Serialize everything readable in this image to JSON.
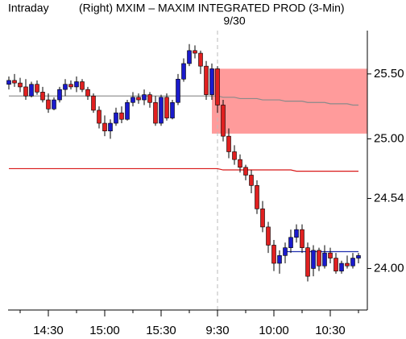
{
  "chart_data": {
    "type": "candlestick",
    "title": "Intraday",
    "subtitle": "(Right)  MXIM – MAXIM INTEGRATED PROD  (3-Min)",
    "annotation": "9/30",
    "up_color": "#1a1acc",
    "down_color": "#e02020",
    "categories": [
      null,
      null,
      null,
      null,
      null,
      null,
      null,
      "14:30",
      null,
      null,
      null,
      null,
      null,
      null,
      null,
      null,
      null,
      "15:00",
      null,
      null,
      null,
      null,
      null,
      null,
      null,
      null,
      null,
      "15:30",
      null,
      null,
      null,
      null,
      null,
      null,
      null,
      null,
      null,
      "9:30",
      null,
      null,
      null,
      null,
      null,
      null,
      null,
      null,
      null,
      "10:00",
      null,
      null,
      null,
      null,
      null,
      null,
      null,
      null,
      null,
      "10:30",
      null,
      null,
      null,
      null,
      null
    ],
    "open": [
      25.42,
      25.45,
      25.43,
      25.4,
      25.33,
      25.42,
      25.36,
      25.3,
      25.23,
      25.3,
      25.38,
      25.42,
      25.4,
      25.44,
      25.38,
      25.33,
      25.22,
      25.12,
      25.06,
      25.12,
      25.2,
      25.15,
      25.28,
      25.32,
      25.3,
      25.34,
      25.28,
      25.12,
      25.32,
      25.16,
      25.28,
      25.46,
      25.58,
      25.68,
      25.66,
      25.56,
      25.34,
      25.54,
      25.26,
      25.02,
      24.9,
      24.84,
      24.78,
      24.72,
      24.64,
      24.46,
      24.32,
      24.18,
      24.04,
      24.1,
      24.16,
      24.24,
      24.3,
      24.16,
      24.0,
      24.14,
      24.02,
      24.12,
      24.08,
      23.98,
      24.04,
      24.02,
      24.08
    ],
    "high": [
      25.48,
      25.5,
      25.47,
      25.46,
      25.44,
      25.45,
      25.4,
      25.35,
      25.32,
      25.4,
      25.46,
      25.45,
      25.48,
      25.46,
      25.4,
      25.35,
      25.25,
      25.18,
      25.15,
      25.24,
      25.25,
      25.3,
      25.36,
      25.35,
      25.38,
      25.36,
      25.33,
      25.34,
      25.35,
      25.3,
      25.5,
      25.62,
      25.73,
      25.72,
      25.68,
      25.6,
      25.58,
      25.56,
      25.3,
      25.08,
      24.95,
      24.88,
      24.8,
      24.76,
      24.68,
      24.52,
      24.36,
      24.22,
      24.14,
      24.2,
      24.3,
      24.34,
      24.34,
      24.2,
      24.18,
      24.16,
      24.18,
      24.16,
      24.12,
      24.06,
      24.1,
      24.12,
      24.12
    ],
    "low": [
      25.38,
      25.4,
      25.36,
      25.3,
      25.32,
      25.34,
      25.28,
      25.2,
      25.22,
      25.28,
      25.33,
      25.38,
      25.36,
      25.36,
      25.3,
      25.2,
      25.08,
      25.02,
      25.0,
      25.1,
      25.12,
      25.14,
      25.25,
      25.27,
      25.26,
      25.24,
      25.1,
      25.1,
      25.14,
      25.15,
      25.26,
      25.44,
      25.56,
      25.62,
      25.5,
      25.3,
      25.3,
      25.2,
      24.98,
      24.85,
      24.8,
      24.74,
      24.68,
      24.58,
      24.42,
      24.28,
      24.12,
      23.98,
      23.96,
      24.04,
      24.12,
      24.2,
      24.12,
      23.9,
      23.94,
      23.98,
      24.0,
      24.04,
      23.96,
      23.96,
      24.0,
      24.0,
      24.04
    ],
    "close": [
      25.45,
      25.43,
      25.4,
      25.33,
      25.42,
      25.36,
      25.3,
      25.23,
      25.3,
      25.38,
      25.42,
      25.4,
      25.44,
      25.38,
      25.33,
      25.22,
      25.12,
      25.06,
      25.12,
      25.2,
      25.15,
      25.28,
      25.32,
      25.3,
      25.34,
      25.28,
      25.12,
      25.32,
      25.16,
      25.28,
      25.46,
      25.58,
      25.68,
      25.66,
      25.56,
      25.34,
      25.54,
      25.26,
      25.02,
      24.9,
      24.84,
      24.78,
      24.72,
      24.64,
      24.46,
      24.32,
      24.18,
      24.04,
      24.1,
      24.16,
      24.24,
      24.3,
      24.16,
      23.94,
      24.14,
      24.02,
      24.12,
      24.08,
      23.98,
      24.04,
      24.02,
      24.08,
      24.1
    ],
    "lines": [
      {
        "color": "#8a8a8a",
        "values": [
          25.33,
          25.33,
          25.33,
          25.33,
          25.33,
          25.33,
          25.33,
          25.33,
          25.33,
          25.33,
          25.33,
          25.33,
          25.33,
          25.33,
          25.33,
          25.33,
          25.33,
          25.33,
          25.33,
          25.33,
          25.33,
          25.33,
          25.33,
          25.33,
          25.33,
          25.33,
          25.33,
          25.33,
          25.33,
          25.33,
          25.33,
          25.33,
          25.33,
          25.33,
          25.33,
          25.33,
          25.33,
          25.33,
          25.32,
          25.32,
          25.32,
          25.31,
          25.31,
          25.31,
          25.31,
          25.3,
          25.3,
          25.3,
          25.3,
          25.29,
          25.29,
          25.29,
          25.29,
          25.28,
          25.28,
          25.28,
          25.28,
          25.27,
          25.27,
          25.27,
          25.27,
          25.26,
          25.26
        ]
      },
      {
        "color": "#d81818",
        "values": [
          24.77,
          24.77,
          24.77,
          24.77,
          24.77,
          24.77,
          24.77,
          24.77,
          24.77,
          24.77,
          24.77,
          24.77,
          24.77,
          24.77,
          24.77,
          24.77,
          24.77,
          24.77,
          24.77,
          24.77,
          24.77,
          24.77,
          24.77,
          24.77,
          24.77,
          24.77,
          24.77,
          24.77,
          24.77,
          24.77,
          24.77,
          24.77,
          24.77,
          24.77,
          24.77,
          24.77,
          24.77,
          24.77,
          24.76,
          24.76,
          24.76,
          24.76,
          24.76,
          24.76,
          24.76,
          24.76,
          24.76,
          24.76,
          24.76,
          24.76,
          24.76,
          24.75,
          24.75,
          24.75,
          24.75,
          24.75,
          24.75,
          24.75,
          24.75,
          24.75,
          24.75,
          24.75,
          24.75
        ]
      },
      {
        "color": "#2030b0",
        "values": [
          null,
          null,
          null,
          null,
          null,
          null,
          null,
          null,
          null,
          null,
          null,
          null,
          null,
          null,
          null,
          null,
          null,
          null,
          null,
          null,
          null,
          null,
          null,
          null,
          null,
          null,
          null,
          null,
          null,
          null,
          null,
          null,
          null,
          null,
          null,
          null,
          null,
          null,
          null,
          null,
          null,
          null,
          null,
          null,
          null,
          null,
          null,
          null,
          null,
          24.13,
          24.13,
          24.13,
          24.13,
          24.13,
          24.13,
          24.13,
          24.13,
          24.13,
          24.13,
          24.13,
          24.13,
          24.13,
          24.13
        ]
      }
    ],
    "zone": {
      "color": "#ff8a8a",
      "range": [
        25.04,
        25.54
      ]
    },
    "ylim": [
      23.68,
      26.07
    ],
    "yticks": [
      {
        "value": 24,
        "label": "24.00"
      },
      24.54,
      {
        "value": 25,
        "label": "25.00"
      },
      {
        "value": 25.5,
        "label": "25.50"
      }
    ]
  }
}
